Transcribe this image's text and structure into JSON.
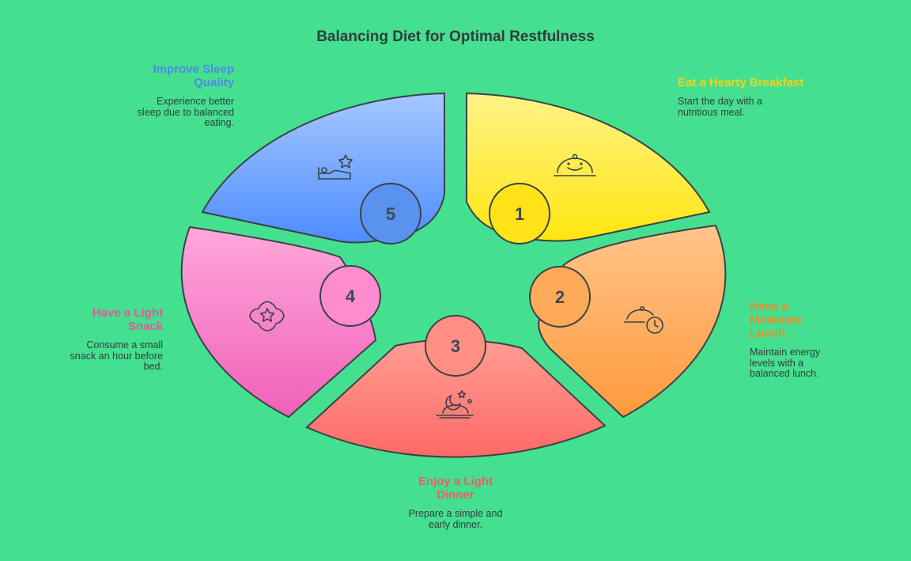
{
  "title": "Balancing Diet for Optimal Restfulness",
  "colors": {
    "background": "#44e090",
    "step1": "#f2d21a",
    "step2": "#f08a28",
    "step3": "#ee5d63",
    "step4": "#e8559f",
    "step5": "#4d88e8"
  },
  "steps": [
    {
      "number": "1",
      "title": "Eat a Hearty Breakfast",
      "description": "Start the day with a nutritious meal.",
      "icon": "cloche-smile-icon"
    },
    {
      "number": "2",
      "title": "Have a Moderate Lunch",
      "description": "Maintain energy levels with a balanced lunch.",
      "icon": "cloche-clock-icon"
    },
    {
      "number": "3",
      "title": "Enjoy a Light Dinner",
      "description": "Prepare a simple and early dinner.",
      "icon": "dinner-moon-icon"
    },
    {
      "number": "4",
      "title": "Have a Light Snack",
      "description": "Consume a small snack an hour before bed.",
      "icon": "badge-star-icon"
    },
    {
      "number": "5",
      "title": "Improve Sleep Quality",
      "description": "Experience better sleep due to balanced eating.",
      "icon": "bed-star-icon"
    }
  ]
}
